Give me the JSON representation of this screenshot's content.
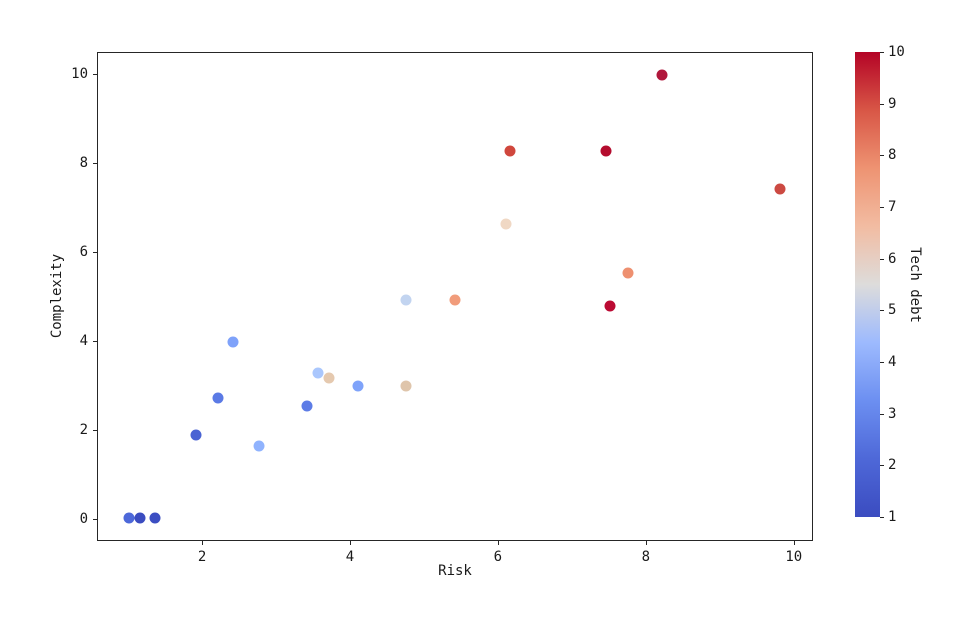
{
  "figure": {
    "background": "#ffffff"
  },
  "chart_data": {
    "type": "scatter",
    "title": "",
    "xlabel": "Risk",
    "ylabel": "Complexity",
    "colorbar_label": "Tech debt",
    "colormap": "coolwarm",
    "grid": false,
    "legend": "colorbar-right",
    "xlim": [
      0.58,
      10.26
    ],
    "ylim": [
      -0.5,
      10.5
    ],
    "x_ticks": [
      2,
      4,
      6,
      8,
      10
    ],
    "y_ticks": [
      0,
      2,
      4,
      6,
      8,
      10
    ],
    "colorbar_range": [
      1,
      10
    ],
    "colorbar_ticks": [
      1,
      2,
      3,
      4,
      5,
      6,
      7,
      8,
      9,
      10
    ],
    "points": [
      {
        "x": 1.0,
        "y": 0.05,
        "tech_debt": 2,
        "color": "#4D68D9"
      },
      {
        "x": 1.15,
        "y": 0.05,
        "tech_debt": 1,
        "color": "#3B4CC0"
      },
      {
        "x": 1.35,
        "y": 0.05,
        "tech_debt": 1,
        "color": "#3C4EC2"
      },
      {
        "x": 1.9,
        "y": 1.9,
        "tech_debt": 2,
        "color": "#4A63D3"
      },
      {
        "x": 2.2,
        "y": 2.75,
        "tech_debt": 3,
        "color": "#5B7AE5"
      },
      {
        "x": 2.4,
        "y": 4.0,
        "tech_debt": 4,
        "color": "#7FA2FA"
      },
      {
        "x": 2.75,
        "y": 1.65,
        "tech_debt": 4,
        "color": "#90B3FE"
      },
      {
        "x": 3.4,
        "y": 2.55,
        "tech_debt": 3,
        "color": "#5D7CE6"
      },
      {
        "x": 3.55,
        "y": 3.3,
        "tech_debt": 5,
        "color": "#AAC7FD"
      },
      {
        "x": 3.7,
        "y": 3.2,
        "tech_debt": 6,
        "color": "#E5C9AF"
      },
      {
        "x": 4.1,
        "y": 3.0,
        "tech_debt": 4,
        "color": "#7FA3FA"
      },
      {
        "x": 4.75,
        "y": 3.0,
        "tech_debt": 6,
        "color": "#DFC5AB"
      },
      {
        "x": 4.75,
        "y": 4.95,
        "tech_debt": 5,
        "color": "#C2D4F0"
      },
      {
        "x": 5.4,
        "y": 4.95,
        "tech_debt": 7,
        "color": "#F19C7B"
      },
      {
        "x": 6.1,
        "y": 6.65,
        "tech_debt": 6,
        "color": "#F0D8C4"
      },
      {
        "x": 6.15,
        "y": 8.3,
        "tech_debt": 9,
        "color": "#D0473D"
      },
      {
        "x": 7.45,
        "y": 8.3,
        "tech_debt": 10,
        "color": "#B40C2E"
      },
      {
        "x": 7.5,
        "y": 4.8,
        "tech_debt": 10,
        "color": "#BB0A33"
      },
      {
        "x": 7.75,
        "y": 5.55,
        "tech_debt": 8,
        "color": "#EE9070"
      },
      {
        "x": 8.2,
        "y": 10.0,
        "tech_debt": 10,
        "color": "#B0173B"
      },
      {
        "x": 9.8,
        "y": 7.45,
        "tech_debt": 9,
        "color": "#CC4A42"
      }
    ]
  },
  "colorbar_gradient": [
    {
      "stop": 0.0,
      "color": "#3B4CC0"
    },
    {
      "stop": 0.125,
      "color": "#4E68D8"
    },
    {
      "stop": 0.25,
      "color": "#6C8FF1"
    },
    {
      "stop": 0.375,
      "color": "#9DBAFE"
    },
    {
      "stop": 0.5,
      "color": "#DDDCDB"
    },
    {
      "stop": 0.625,
      "color": "#F2BCA2"
    },
    {
      "stop": 0.75,
      "color": "#EE9372"
    },
    {
      "stop": 0.875,
      "color": "#D85646"
    },
    {
      "stop": 1.0,
      "color": "#B40426"
    }
  ]
}
